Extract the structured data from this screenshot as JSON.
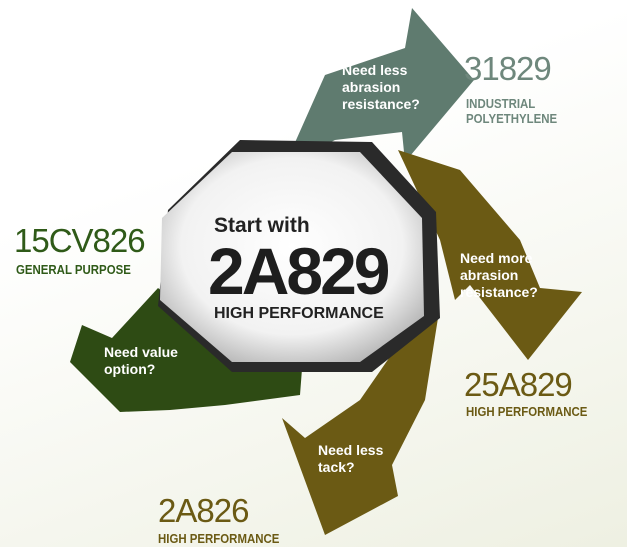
{
  "center": {
    "intro": "Start with",
    "code": "2A829",
    "subtitle": "HIGH PERFORMANCE"
  },
  "steps": [
    {
      "question": [
        "Need less",
        "abrasion",
        "resistance?"
      ],
      "code": "31829",
      "description": [
        "INDUSTRIAL",
        "POLYETHYLENE"
      ]
    },
    {
      "question": [
        "Need more",
        "abrasion",
        "resistance?"
      ],
      "code": "25A829",
      "description": [
        "HIGH PERFORMANCE"
      ]
    },
    {
      "question": [
        "Need less",
        "tack?"
      ],
      "code": "2A826",
      "description": [
        "HIGH PERFORMANCE"
      ]
    },
    {
      "question": [
        "Need value",
        "option?"
      ],
      "code": "15CV826",
      "description": [
        "GENERAL PURPOSE"
      ]
    }
  ]
}
